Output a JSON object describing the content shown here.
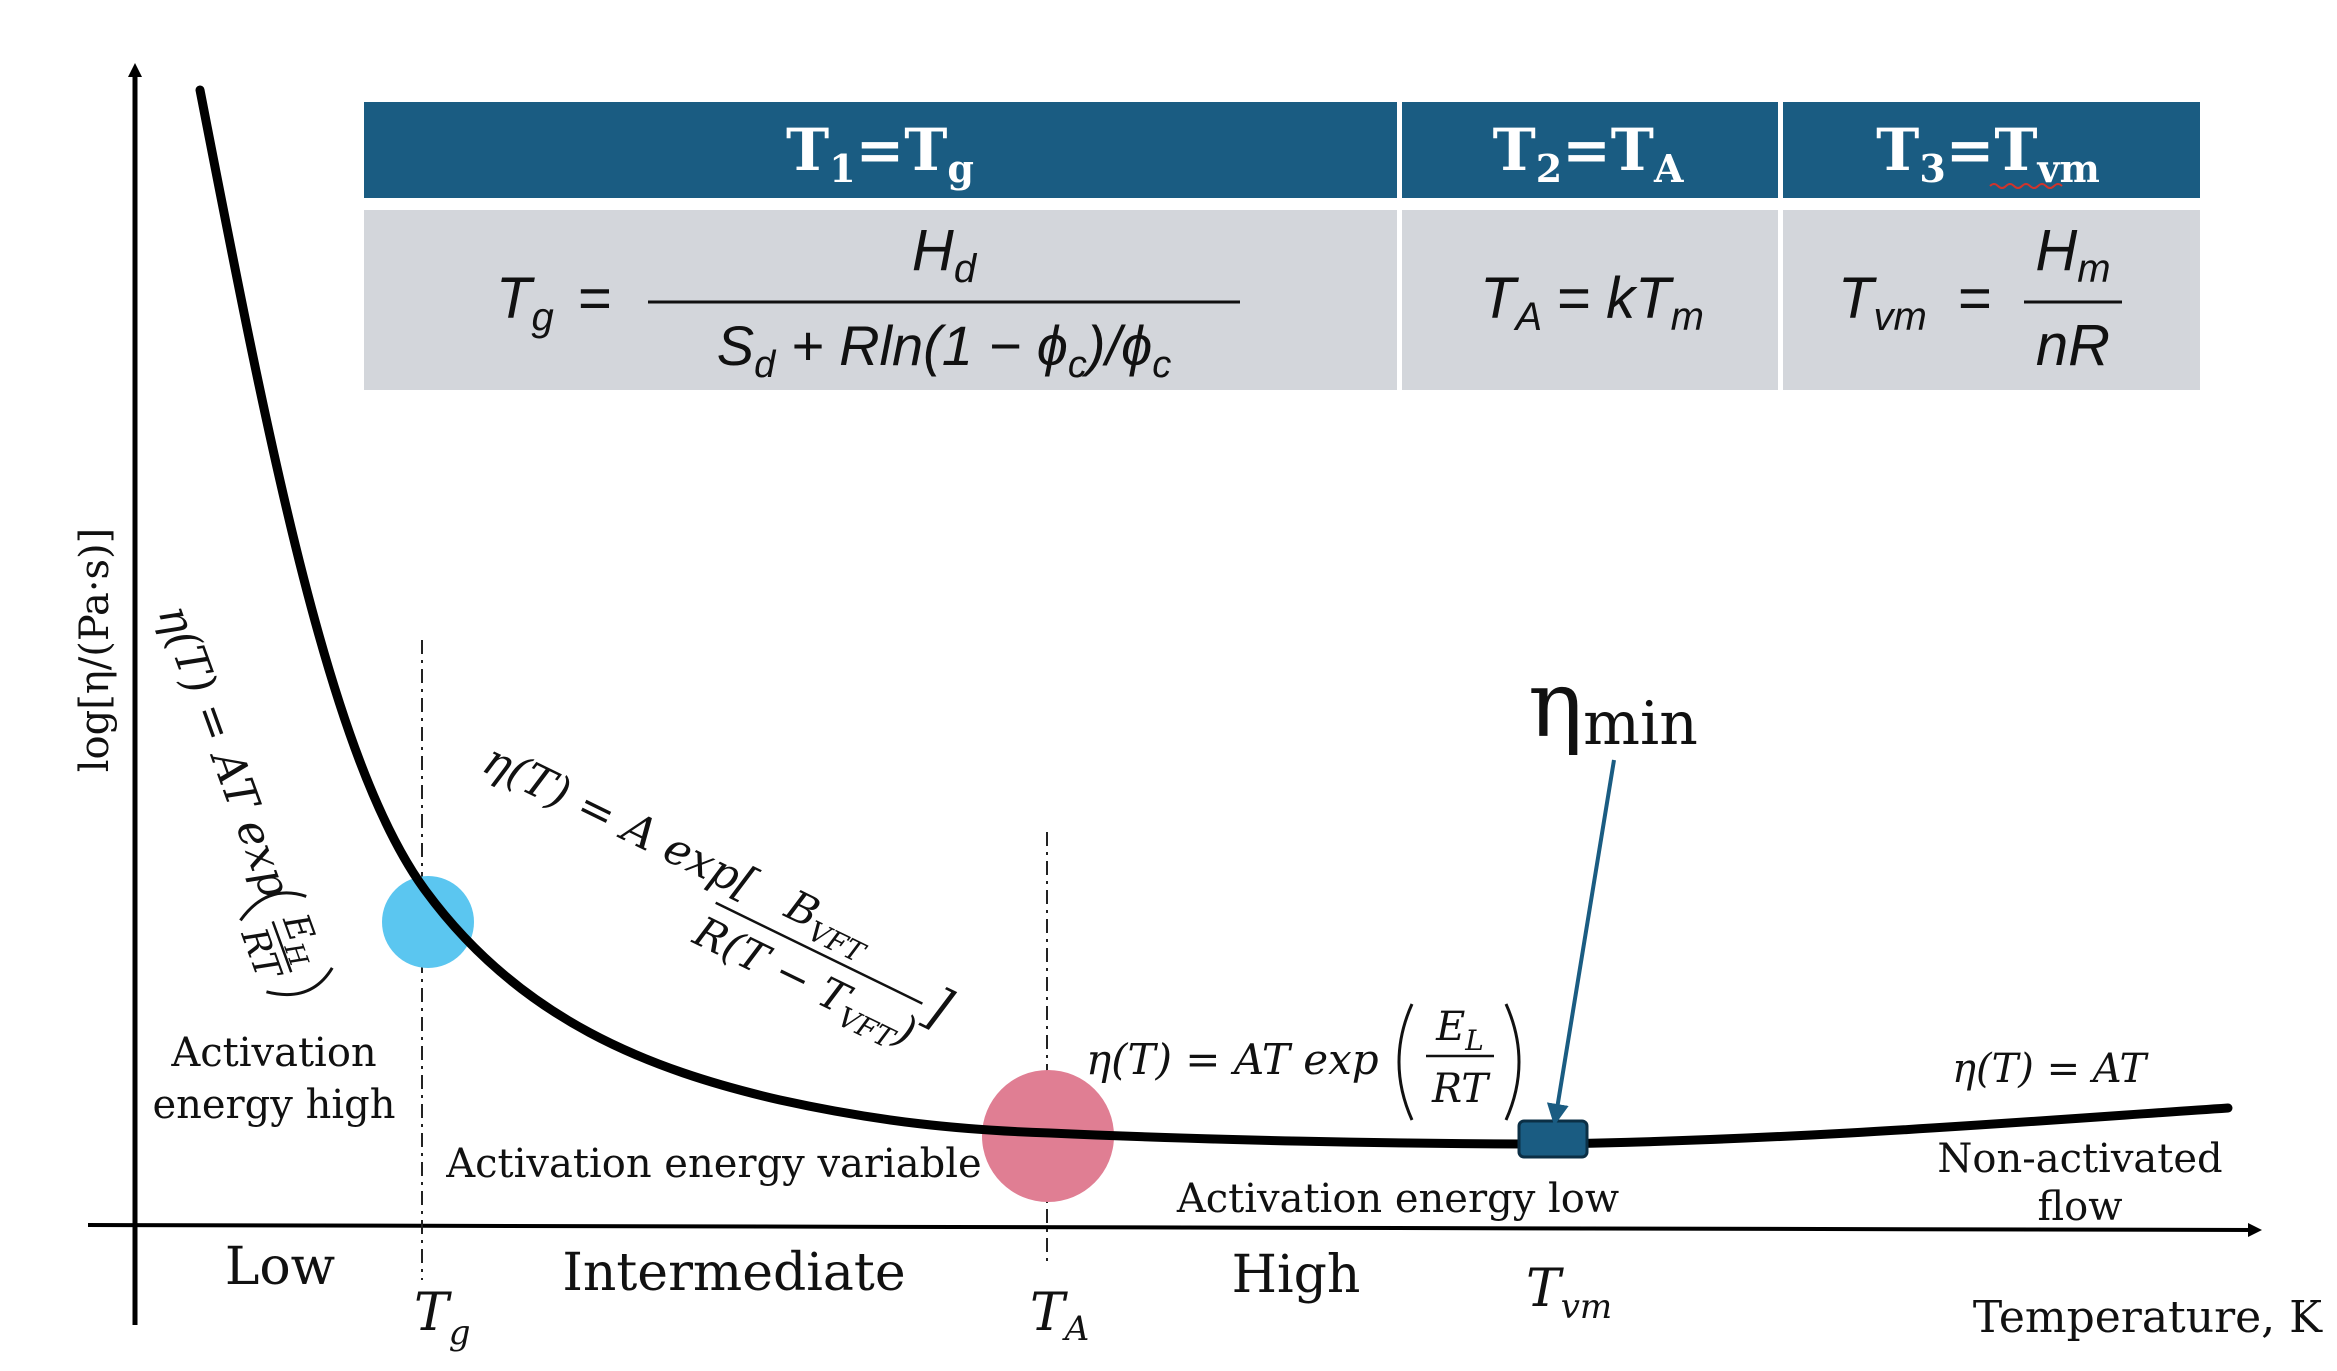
{
  "axes": {
    "y_label": "log[η/(Pa·s)]",
    "x_label": "Temperature, K"
  },
  "table": {
    "header_color": "#1a5c82",
    "body_color": "#d3d6db",
    "headers": [
      {
        "base": "T",
        "sub1": "1",
        "eq": "=T",
        "sub2": "g"
      },
      {
        "base": "T",
        "sub1": "2",
        "eq": "=T",
        "sub2": "A"
      },
      {
        "base": "T",
        "sub1": "3",
        "eq": "=T",
        "sub2": "vm"
      }
    ],
    "formulas": {
      "tg": {
        "lhs": "T",
        "lhs_sub": "g",
        "eq": "=",
        "num": "H",
        "num_sub": "d",
        "den_a": "S",
        "den_a_sub": "d",
        "den_b": " + Rln(1 − ϕ",
        "den_b_sub": "c",
        "den_c": ")/ϕ",
        "den_c_sub": "c"
      },
      "ta": {
        "lhs": "T",
        "lhs_sub": "A",
        "eq": "= kT",
        "rhs_sub": "m"
      },
      "tvm": {
        "lhs": "T",
        "lhs_sub": "vm",
        "eq": "=",
        "num": "H",
        "num_sub": "m",
        "den": "nR"
      }
    }
  },
  "equations": {
    "arrhenius_high": {
      "a": "η(T) = AT exp",
      "num": "E",
      "num_sub": "H",
      "den": "RT"
    },
    "vft": {
      "a": "η(T) = A exp[",
      "num": "B",
      "num_sub": "VFT",
      "den": "R(T − T",
      "den_sub": "VFT",
      "den_end": ")",
      "close": "]"
    },
    "arrhenius_low": {
      "a": "η(T) = AT exp",
      "num": "E",
      "num_sub": "L",
      "den": "RT"
    },
    "linear": "η(T) = AT"
  },
  "labels": {
    "eta_min": "η",
    "eta_min_sub": "min",
    "activation_high_1": "Activation",
    "activation_high_2": "energy high",
    "activation_variable": "Activation energy variable",
    "activation_low": "Activation energy low",
    "non_activated_1": "Non-activated",
    "non_activated_2": "flow"
  },
  "regions": {
    "low": "Low",
    "intermediate": "Intermediate",
    "high": "High"
  },
  "ticks": {
    "tg": {
      "base": "T",
      "sub": "g"
    },
    "ta": {
      "base": "T",
      "sub": "A"
    },
    "tvm": {
      "base": "T",
      "sub": "vm"
    }
  },
  "colors": {
    "curve": "#000000",
    "tg_marker": "#5bc6f0",
    "ta_marker": "#e07e93",
    "min_marker": "#1a5c82",
    "arrow": "#1a5c82"
  }
}
